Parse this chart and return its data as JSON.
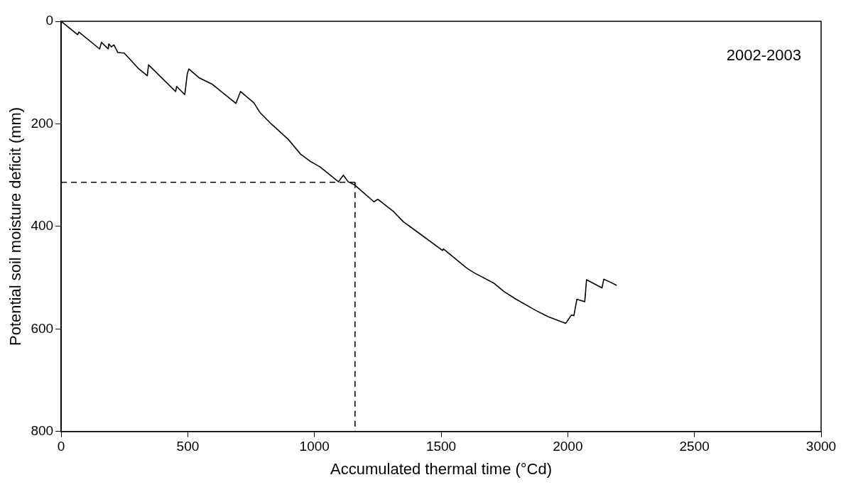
{
  "chart_data": {
    "type": "line",
    "xlabel": "Accumulated thermal time (°Cd)",
    "ylabel": "Potential soil moisture deficit (mm)",
    "xlim": [
      0,
      3000
    ],
    "xticks": [
      0,
      500,
      1000,
      1500,
      2000,
      2500,
      3000
    ],
    "ylim": [
      800,
      0
    ],
    "yticks": [
      0,
      200,
      400,
      600,
      800
    ],
    "grid": false,
    "legend": false,
    "marker": "none",
    "annotations": [
      "2002-2003"
    ],
    "series": [
      {
        "color": "#000000",
        "line_style": "solid",
        "x": [
          0,
          65,
          70,
          152,
          159,
          186,
          188,
          198,
          208,
          224,
          249,
          307,
          340,
          345,
          452,
          456,
          488,
          498,
          504,
          544,
          597,
          690,
          708,
          761,
          785,
          829,
          896,
          945,
          983,
          1022,
          1095,
          1114,
          1133,
          1158,
          1235,
          1250,
          1312,
          1351,
          1390,
          1506,
          1509,
          1603,
          1632,
          1709,
          1748,
          1796,
          1874,
          1922,
          1992,
          2014,
          2024,
          2036,
          2067,
          2074,
          2135,
          2142,
          2169,
          2193
        ],
        "values": [
          0,
          26,
          21,
          54,
          41,
          54,
          44,
          50,
          46,
          61,
          62,
          93,
          106,
          85,
          137,
          127,
          143,
          102,
          93,
          110,
          123,
          160,
          137,
          159,
          178,
          200,
          230,
          259,
          273,
          284,
          313,
          300,
          313,
          319,
          352,
          347,
          371,
          391,
          405,
          447,
          444,
          482,
          491,
          511,
          527,
          542,
          564,
          576,
          589,
          573,
          574,
          542,
          547,
          504,
          520,
          503,
          509,
          515
        ]
      },
      {
        "color": "#000000",
        "line_style": "dashed",
        "x": [
          0,
          1160
        ],
        "values": [
          314,
          314
        ]
      },
      {
        "color": "#000000",
        "line_style": "dashed",
        "x": [
          1160,
          1160
        ],
        "values": [
          314,
          800
        ]
      }
    ]
  }
}
